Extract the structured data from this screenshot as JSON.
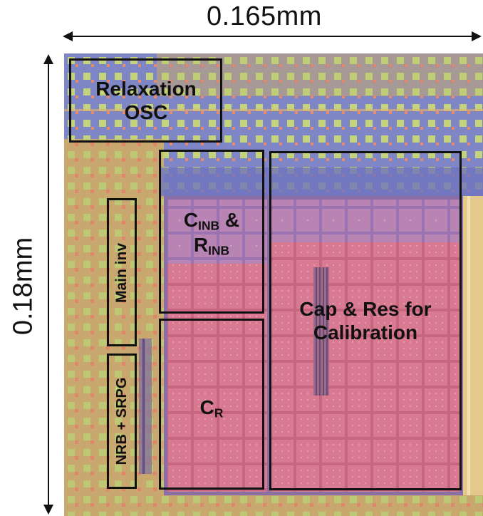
{
  "dimensions": {
    "width": "0.165mm",
    "height": "0.18mm"
  },
  "blocks": {
    "relaxation_osc": {
      "line1": "Relaxation",
      "line2": "OSC"
    },
    "main_inv": {
      "label": "Main inv"
    },
    "nrb_srpg": {
      "label": "NRB + SRPG"
    },
    "cinb_rinb": {
      "c": "C",
      "c_sub": "INB",
      "amp": " &",
      "r": "R",
      "r_sub": "INB"
    },
    "cr": {
      "c": "C",
      "c_sub": "R"
    },
    "cal": {
      "line1": "Cap & Res for",
      "line2": "Calibration"
    }
  },
  "colors": {
    "die_base": "#c9a774",
    "pad_green": "#b8c86a",
    "pad_blue": "#7a7fc4",
    "capacitor_pink": "#cf6f8a",
    "box_stroke": "#111111"
  }
}
